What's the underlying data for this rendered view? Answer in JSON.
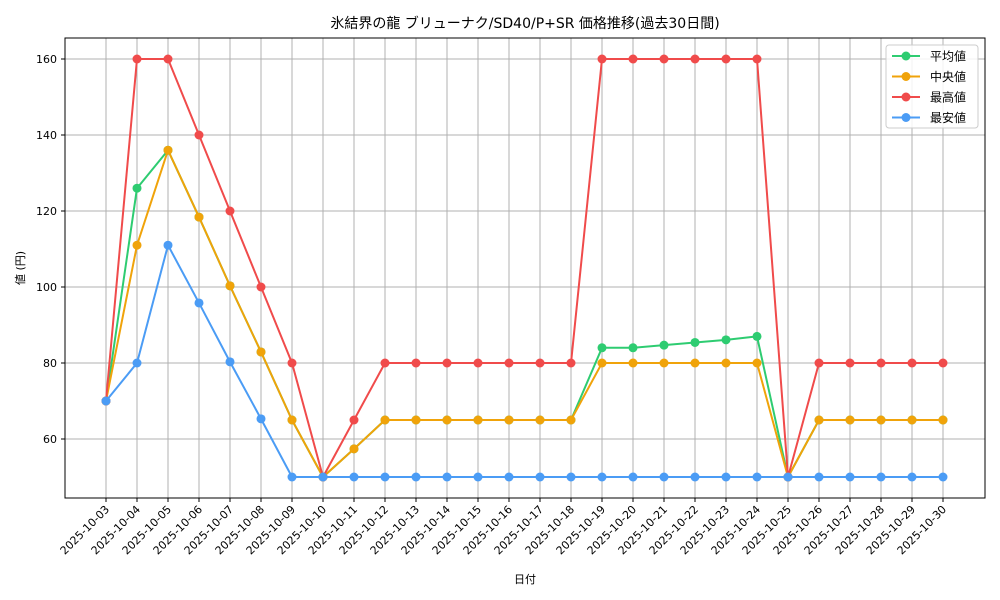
{
  "chart_data": {
    "type": "line",
    "title": "氷結界の龍 ブリューナク/SD40/P+SR 価格推移(過去30日間)",
    "xlabel": "日付",
    "ylabel": "値 (円)",
    "ylim": [
      45,
      165
    ],
    "yticks": [
      60,
      80,
      100,
      120,
      140,
      160
    ],
    "grid": true,
    "legend_position": "upper right",
    "x": [
      "2025-10-03",
      "2025-10-04",
      "2025-10-05",
      "2025-10-06",
      "2025-10-07",
      "2025-10-08",
      "2025-10-09",
      "2025-10-10",
      "2025-10-11",
      "2025-10-12",
      "2025-10-13",
      "2025-10-14",
      "2025-10-15",
      "2025-10-16",
      "2025-10-17",
      "2025-10-18",
      "2025-10-19",
      "2025-10-20",
      "2025-10-21",
      "2025-10-22",
      "2025-10-23",
      "2025-10-24",
      "2025-10-25",
      "2025-10-26",
      "2025-10-27",
      "2025-10-28",
      "2025-10-29",
      "2025-10-30"
    ],
    "series": [
      {
        "name": "平均値",
        "color": "#2ecc71",
        "values": [
          70,
          126,
          136,
          118.4,
          100.3,
          82.9,
          65,
          50,
          57.4,
          65,
          65,
          65,
          65,
          65,
          65,
          65,
          84,
          84,
          84.7,
          85.4,
          86.1,
          87,
          50,
          65,
          65,
          65,
          65,
          65
        ]
      },
      {
        "name": "中央値",
        "color": "#f0a30a",
        "values": [
          70,
          111,
          136,
          118.4,
          100.3,
          82.9,
          65,
          50,
          57.4,
          65,
          65,
          65,
          65,
          65,
          65,
          65,
          80,
          80,
          80,
          80,
          80,
          80,
          50,
          65,
          65,
          65,
          65,
          65
        ]
      },
      {
        "name": "最高値",
        "color": "#f04b4b",
        "values": [
          70,
          160,
          160,
          140,
          120,
          100,
          80,
          50,
          65,
          80,
          80,
          80,
          80,
          80,
          80,
          80,
          160,
          160,
          160,
          160,
          160,
          160,
          50,
          80,
          80,
          80,
          80,
          80
        ]
      },
      {
        "name": "最安値",
        "color": "#4b9cf5",
        "values": [
          70,
          80,
          111,
          95.8,
          80.3,
          65.3,
          50,
          50,
          50,
          50,
          50,
          50,
          50,
          50,
          50,
          50,
          50,
          50,
          50,
          50,
          50,
          50,
          50,
          50,
          50,
          50,
          50,
          50
        ]
      }
    ]
  },
  "colors": {
    "grid": "#b0b0b0",
    "axis": "#000000",
    "legend_border": "#cccccc"
  }
}
